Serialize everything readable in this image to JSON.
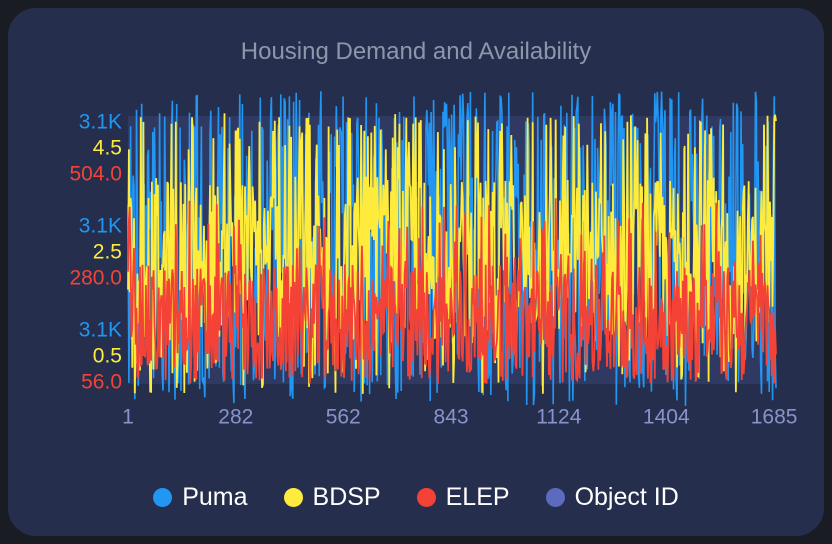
{
  "card": {
    "title": "Housing Demand and Availability"
  },
  "chart_data": {
    "type": "line",
    "title": "Housing Demand and Availability",
    "x_ticks": [
      "1",
      "282",
      "562",
      "843",
      "1124",
      "1404",
      "1685"
    ],
    "xlim": [
      1,
      1690
    ],
    "grid": false,
    "legend_position": "bottom",
    "y_axes": [
      {
        "series": "Puma",
        "color": "#2196f3",
        "tick_labels": [
          "3.1K",
          "3.1K",
          "3.1K"
        ]
      },
      {
        "series": "BDSP",
        "color": "#ffeb3b",
        "tick_labels": [
          "0.5",
          "2.5",
          "4.5"
        ],
        "ticks": [
          0.5,
          2.5,
          4.5
        ]
      },
      {
        "series": "ELEP",
        "color": "#f44336",
        "tick_labels": [
          "56.0",
          "280.0",
          "504.0"
        ],
        "ticks": [
          56,
          280,
          504
        ]
      }
    ],
    "series": [
      {
        "name": "Puma",
        "color": "#2196f3",
        "approx_range_fraction": [
          0.0,
          1.1
        ],
        "approx_typical_fraction": [
          0.15,
          0.85
        ]
      },
      {
        "name": "BDSP",
        "color": "#ffeb3b",
        "approx_range": [
          0.5,
          4.5
        ],
        "approx_typical": [
          1.0,
          3.8
        ]
      },
      {
        "name": "ELEP",
        "color": "#f44336",
        "approx_range": [
          56,
          504
        ],
        "approx_typical": [
          60,
          300
        ]
      },
      {
        "name": "Object ID",
        "color": "#5c6bc0",
        "approx_range": [
          1,
          1690
        ]
      }
    ],
    "legend": [
      "Puma",
      "BDSP",
      "ELEP",
      "Object ID"
    ]
  }
}
